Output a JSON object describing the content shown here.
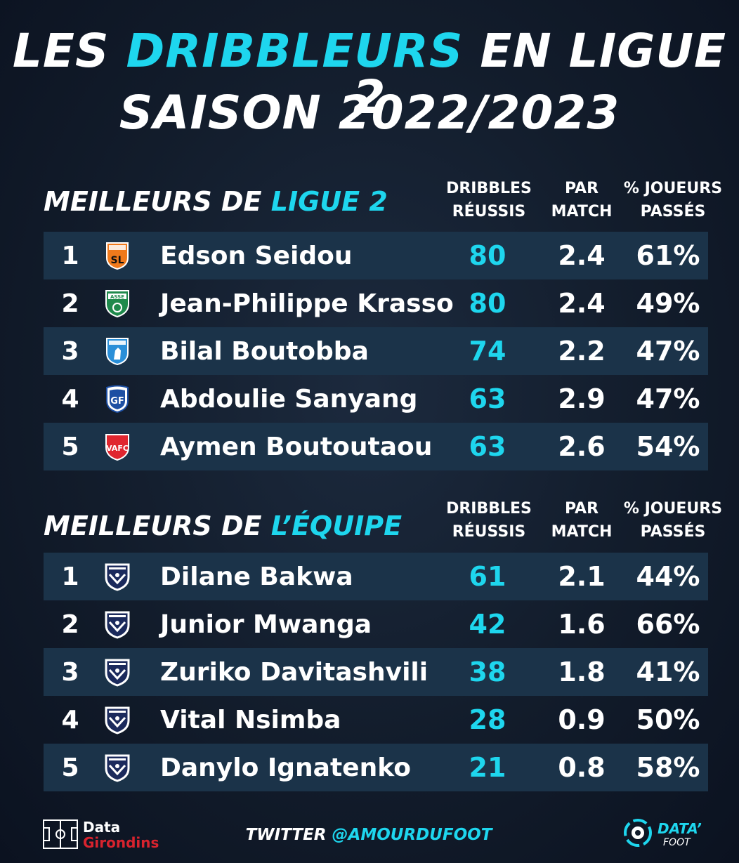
{
  "title": {
    "line1_pre": "LES ",
    "line1_accent": "DRIBBLEURS",
    "line1_post": " EN LIGUE 2",
    "line2": "SAISON 2022/2023"
  },
  "columns": {
    "dribbles": [
      "DRIBBLES",
      "RÉUSSIS"
    ],
    "per_match": [
      "PAR",
      "MATCH"
    ],
    "pct": [
      "% JOUEURS",
      "PASSÉS"
    ]
  },
  "league_section": {
    "title_pre": "MEILLEURS DE ",
    "title_accent": "LIGUE 2",
    "rows": [
      {
        "rank": "1",
        "crest": "laval-crest-icon",
        "name": "Edson Seidou",
        "dribbles": "80",
        "per_match": "2.4",
        "pct": "61%"
      },
      {
        "rank": "2",
        "crest": "asse-crest-icon",
        "name": "Jean-Philippe Krasso",
        "dribbles": "80",
        "per_match": "2.4",
        "pct": "49%"
      },
      {
        "rank": "3",
        "crest": "niort-crest-icon",
        "name": "Bilal Boutobba",
        "dribbles": "74",
        "per_match": "2.2",
        "pct": "47%"
      },
      {
        "rank": "4",
        "crest": "grenoble-crest-icon",
        "name": "Abdoulie Sanyang",
        "dribbles": "63",
        "per_match": "2.9",
        "pct": "47%"
      },
      {
        "rank": "5",
        "crest": "valenciennes-crest-icon",
        "name": "Aymen Boutoutaou",
        "dribbles": "63",
        "per_match": "2.6",
        "pct": "54%"
      }
    ]
  },
  "team_section": {
    "title_pre": "MEILLEURS DE ",
    "title_accent": "L’ÉQUIPE",
    "rows": [
      {
        "rank": "1",
        "crest": "bordeaux-crest-icon",
        "name": "Dilane Bakwa",
        "dribbles": "61",
        "per_match": "2.1",
        "pct": "44%"
      },
      {
        "rank": "2",
        "crest": "bordeaux-crest-icon",
        "name": "Junior Mwanga",
        "dribbles": "42",
        "per_match": "1.6",
        "pct": "66%"
      },
      {
        "rank": "3",
        "crest": "bordeaux-crest-icon",
        "name": "Zuriko Davitashvili",
        "dribbles": "38",
        "per_match": "1.8",
        "pct": "41%"
      },
      {
        "rank": "4",
        "crest": "bordeaux-crest-icon",
        "name": "Vital Nsimba",
        "dribbles": "28",
        "per_match": "0.9",
        "pct": "50%"
      },
      {
        "rank": "5",
        "crest": "bordeaux-crest-icon",
        "name": "Danylo Ignatenko",
        "dribbles": "21",
        "per_match": "0.8",
        "pct": "58%"
      }
    ]
  },
  "footer": {
    "handle_pre": "TWITTER ",
    "handle_accent": "@AMOURDUFOOT",
    "brand_left_1": "Data",
    "brand_left_2": "Girondins",
    "brand_right_1": "DATA’",
    "brand_right_2": "FOOT"
  },
  "colors": {
    "accent": "#1ed6ee",
    "row_band": "#1b3349",
    "background": "#121c2b",
    "brand_red": "#d8232e"
  }
}
